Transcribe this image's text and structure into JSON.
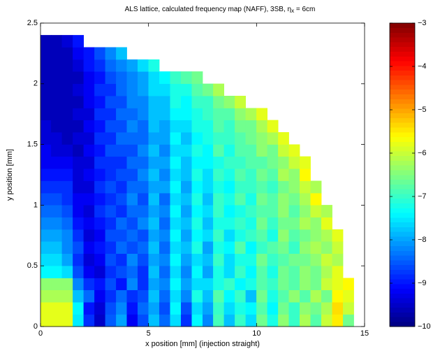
{
  "chart_data": {
    "type": "heatmap",
    "title": "ALS lattice, calculated frequency map (NAFF), 3SB, η",
    "title_subscript": "x",
    "title_end": " = 6cm",
    "x_label": "x position [mm] (injection straight)",
    "y_label": "y position [mm]",
    "xlim": [
      0,
      15
    ],
    "xticks": [
      0,
      5,
      10,
      15
    ],
    "ylim": [
      0,
      2.5
    ],
    "yticks": [
      0,
      0.5,
      1,
      1.5,
      2,
      2.5
    ],
    "colormap": "jet",
    "clim": [
      -10,
      -3
    ],
    "cticks": [
      {
        "value": -10,
        "label": "−10"
      },
      {
        "value": -9,
        "label": "−9"
      },
      {
        "value": -8,
        "label": "−8"
      },
      {
        "value": -7,
        "label": "−7"
      },
      {
        "value": -6,
        "label": "−6"
      },
      {
        "value": -5,
        "label": "−5"
      },
      {
        "value": -4,
        "label": "−4"
      },
      {
        "value": -3,
        "label": "−3"
      }
    ],
    "x_edges": [
      0,
      0.5,
      1,
      1.5,
      2,
      2.5,
      3,
      3.5,
      4,
      4.5,
      5,
      5.5,
      6,
      6.5,
      7,
      7.5,
      8,
      8.5,
      9,
      9.5,
      10,
      10.5,
      11,
      11.5,
      12,
      12.5,
      13,
      13.5,
      14,
      14.5
    ],
    "y_edges": [
      0,
      0.1,
      0.2,
      0.3,
      0.4,
      0.5,
      0.6,
      0.7,
      0.8,
      0.9,
      1,
      1.1,
      1.2,
      1.3,
      1.4,
      1.5,
      1.6,
      1.7,
      1.8,
      1.9,
      2,
      2.1,
      2.2,
      2.3,
      2.4
    ],
    "values": [
      [
        -5.8,
        -5.8,
        -5.8,
        -7.5,
        -8.8,
        -9.5,
        -8.5,
        -8.0,
        -9.2,
        -8.6,
        -7.8,
        -8.4,
        -7.6,
        -8.8,
        -7.4,
        -8.2,
        -6.9,
        -7.8,
        -7.0,
        -7.6,
        -6.6,
        -7.2,
        -6.4,
        -7.0,
        -6.2,
        -6.8,
        -6.0,
        -5.5,
        -6.6
      ],
      [
        -5.8,
        -5.8,
        -5.8,
        -7.4,
        -9.0,
        -9.4,
        -8.6,
        -8.2,
        -9.0,
        -8.4,
        -8.0,
        -8.6,
        -7.4,
        -8.6,
        -7.6,
        -8.0,
        -7.0,
        -7.6,
        -7.2,
        -7.4,
        -6.8,
        -7.4,
        -6.6,
        -7.0,
        -6.4,
        -6.6,
        -6.2,
        -5.4,
        -6.0
      ],
      [
        -6.2,
        -6.2,
        -6.2,
        -7.8,
        -8.4,
        -9.2,
        -8.8,
        -8.4,
        -8.8,
        -8.6,
        -7.8,
        -8.4,
        -7.6,
        -8.2,
        -7.2,
        -7.8,
        -6.8,
        -7.4,
        -7.0,
        -7.8,
        -6.6,
        -7.2,
        -6.8,
        -6.4,
        -6.8,
        -6.2,
        -6.6,
        -5.6,
        -5.8
      ],
      [
        -6.4,
        -6.4,
        -6.4,
        -8.2,
        -8.8,
        -9.0,
        -8.6,
        -9.0,
        -8.2,
        -8.8,
        -8.0,
        -8.2,
        -7.4,
        -8.0,
        -7.6,
        -7.6,
        -7.2,
        -7.0,
        -7.4,
        -7.2,
        -6.8,
        -7.0,
        -6.6,
        -6.8,
        -6.4,
        -6.6,
        -6.0,
        -5.8,
        -5.6
      ],
      [
        -7.4,
        -7.4,
        -7.6,
        -8.6,
        -9.2,
        -9.4,
        -8.8,
        -8.6,
        -8.4,
        -8.8,
        -7.8,
        -8.4,
        -7.6,
        -8.2,
        -7.4,
        -8.0,
        -7.2,
        -7.6,
        -7.0,
        -7.4,
        -6.8,
        -7.2,
        -6.6,
        -6.8,
        -6.4,
        -6.6,
        -6.2,
        -5.8,
        null
      ],
      [
        -7.6,
        -7.6,
        -8.0,
        -8.8,
        -9.4,
        -9.2,
        -8.6,
        -8.8,
        -8.2,
        -8.6,
        -8.0,
        -8.2,
        -7.4,
        -8.0,
        -7.6,
        -7.8,
        -7.0,
        -7.6,
        -7.2,
        -7.2,
        -6.6,
        -7.0,
        -6.8,
        -6.6,
        -6.6,
        -6.4,
        -6.0,
        -6.2,
        null
      ],
      [
        -7.8,
        -7.8,
        -8.2,
        -8.6,
        -9.2,
        -9.0,
        -8.8,
        -8.4,
        -8.6,
        -8.4,
        -7.8,
        -8.4,
        -7.6,
        -7.8,
        -7.2,
        -8.0,
        -7.2,
        -7.4,
        -6.8,
        -7.4,
        -7.0,
        -6.8,
        -6.6,
        -7.0,
        -6.4,
        -6.2,
        -6.4,
        -6.0,
        null
      ],
      [
        -8.0,
        -8.0,
        -8.2,
        -8.8,
        -9.4,
        -9.2,
        -8.6,
        -8.6,
        -8.4,
        -8.6,
        -8.0,
        -8.2,
        -7.4,
        -8.0,
        -7.4,
        -7.6,
        -7.0,
        -7.6,
        -7.2,
        -7.0,
        -6.8,
        -7.2,
        -6.4,
        -6.8,
        -6.6,
        -6.4,
        -6.2,
        -5.8,
        null
      ],
      [
        -8.2,
        -8.2,
        -8.4,
        -9.0,
        -9.2,
        -9.0,
        -8.8,
        -8.4,
        -8.6,
        -8.2,
        -7.8,
        -8.4,
        -7.6,
        -7.8,
        -7.2,
        -7.8,
        -7.2,
        -7.2,
        -7.0,
        -7.2,
        -6.6,
        -7.0,
        -6.6,
        -6.6,
        -6.2,
        -6.4,
        -5.8,
        null,
        null
      ],
      [
        -8.4,
        -8.4,
        -8.6,
        -9.2,
        -9.4,
        -8.8,
        -8.6,
        -8.8,
        -8.4,
        -8.4,
        -8.0,
        -8.2,
        -7.4,
        -8.0,
        -7.4,
        -7.6,
        -7.0,
        -7.4,
        -7.2,
        -7.0,
        -6.8,
        -6.8,
        -6.4,
        -6.8,
        -6.4,
        -6.0,
        -6.2,
        null,
        null
      ],
      [
        -8.6,
        -8.6,
        -8.8,
        -9.2,
        -9.2,
        -9.0,
        -8.8,
        -8.6,
        -8.2,
        -8.6,
        -7.8,
        -8.4,
        -7.6,
        -7.8,
        -7.2,
        -7.8,
        -7.0,
        -7.2,
        -6.8,
        -7.2,
        -6.6,
        -6.8,
        -6.4,
        -6.6,
        -6.2,
        -5.6,
        null,
        null,
        null
      ],
      [
        -8.8,
        -8.8,
        -8.8,
        -9.4,
        -9.4,
        -8.8,
        -8.6,
        -8.8,
        -8.4,
        -8.4,
        -8.0,
        -8.0,
        -7.4,
        -8.0,
        -7.4,
        -7.6,
        -7.2,
        -7.4,
        -7.0,
        -7.0,
        -6.8,
        -7.0,
        -6.6,
        -6.4,
        -6.0,
        -6.2,
        null,
        null,
        null
      ],
      [
        -9.0,
        -9.0,
        -9.0,
        -9.4,
        -9.2,
        -9.0,
        -8.8,
        -8.6,
        -8.6,
        -8.2,
        -7.8,
        -8.2,
        -7.6,
        -7.8,
        -7.2,
        -7.6,
        -7.0,
        -7.2,
        -6.8,
        -7.0,
        -6.6,
        -6.8,
        -6.2,
        -6.4,
        -5.6,
        null,
        null,
        null,
        null
      ],
      [
        -9.2,
        -9.2,
        -9.2,
        -9.4,
        -9.4,
        -8.8,
        -8.8,
        -8.8,
        -8.4,
        -8.4,
        -8.0,
        -8.0,
        -7.4,
        -7.8,
        -7.4,
        -7.4,
        -7.2,
        -7.0,
        -7.0,
        -6.8,
        -6.8,
        -6.6,
        -6.4,
        -6.0,
        -5.8,
        null,
        null,
        null,
        null
      ],
      [
        -9.2,
        -9.4,
        -9.4,
        -9.6,
        -9.2,
        -9.0,
        -8.6,
        -8.6,
        -8.6,
        -8.2,
        -7.8,
        -8.2,
        -7.6,
        -7.6,
        -7.2,
        -7.4,
        -6.8,
        -7.2,
        -6.8,
        -6.8,
        -6.4,
        -6.6,
        -6.0,
        -5.8,
        null,
        null,
        null,
        null,
        null
      ],
      [
        -9.4,
        -9.4,
        -9.6,
        -9.4,
        -9.4,
        -8.8,
        -8.8,
        -8.4,
        -8.4,
        -8.4,
        -8.0,
        -8.0,
        -7.4,
        -7.8,
        -7.4,
        -7.2,
        -7.0,
        -7.0,
        -6.8,
        -6.6,
        -6.4,
        -6.2,
        -5.8,
        null,
        null,
        null,
        null,
        null,
        null
      ],
      [
        -9.4,
        -9.6,
        -9.6,
        -9.6,
        -9.2,
        -9.0,
        -8.6,
        -8.6,
        -8.2,
        -8.4,
        -7.8,
        -8.0,
        -7.6,
        -7.6,
        -7.2,
        -7.2,
        -6.8,
        -7.0,
        -6.6,
        -6.6,
        -6.2,
        -5.8,
        null,
        null,
        null,
        null,
        null,
        null,
        null
      ],
      [
        -9.6,
        -9.6,
        -9.6,
        -9.4,
        -9.4,
        -8.8,
        -8.8,
        -8.4,
        -8.4,
        -8.2,
        -7.8,
        -7.8,
        -7.4,
        -7.4,
        -7.2,
        -7.0,
        -6.8,
        -6.8,
        -6.4,
        -6.2,
        -5.8,
        null,
        null,
        null,
        null,
        null,
        null,
        null,
        null
      ],
      [
        -9.6,
        -9.6,
        -9.6,
        -9.6,
        -9.2,
        -9.0,
        -8.6,
        -8.6,
        -8.2,
        -8.2,
        -7.8,
        -7.8,
        -7.2,
        -7.4,
        -7.0,
        -7.0,
        -6.6,
        -6.4,
        -6.0,
        null,
        null,
        null,
        null,
        null,
        null,
        null,
        null,
        null,
        null
      ],
      [
        -9.6,
        -9.6,
        -9.6,
        -9.4,
        -9.2,
        -8.8,
        -8.8,
        -8.4,
        -8.2,
        -8.0,
        -7.6,
        -7.6,
        -7.2,
        -7.2,
        -6.8,
        -6.6,
        -6.2,
        null,
        null,
        null,
        null,
        null,
        null,
        null,
        null,
        null,
        null,
        null,
        null
      ],
      [
        -9.6,
        -9.6,
        -9.6,
        -9.6,
        -9.2,
        -9.0,
        -8.6,
        -8.4,
        -8.2,
        -8.0,
        -7.6,
        -7.4,
        -7.0,
        -6.8,
        -6.6,
        null,
        null,
        null,
        null,
        null,
        null,
        null,
        null,
        null,
        null,
        null,
        null,
        null,
        null
      ],
      [
        -9.6,
        -9.6,
        -9.6,
        -9.4,
        -9.0,
        -8.8,
        -8.4,
        -8.2,
        -8.0,
        -7.6,
        -7.2,
        null,
        null,
        null,
        null,
        null,
        null,
        null,
        null,
        null,
        null,
        null,
        null,
        null,
        null,
        null,
        null,
        null,
        null
      ],
      [
        -9.6,
        -9.6,
        -9.6,
        -9.2,
        -9.0,
        -8.6,
        -8.2,
        -7.8,
        null,
        null,
        null,
        null,
        null,
        null,
        null,
        null,
        null,
        null,
        null,
        null,
        null,
        null,
        null,
        null,
        null,
        null,
        null,
        null,
        null
      ],
      [
        -9.6,
        -9.6,
        -9.4,
        -9.0,
        null,
        null,
        null,
        null,
        null,
        null,
        null,
        null,
        null,
        null,
        null,
        null,
        null,
        null,
        null,
        null,
        null,
        null,
        null,
        null,
        null,
        null,
        null,
        null,
        null
      ]
    ]
  }
}
